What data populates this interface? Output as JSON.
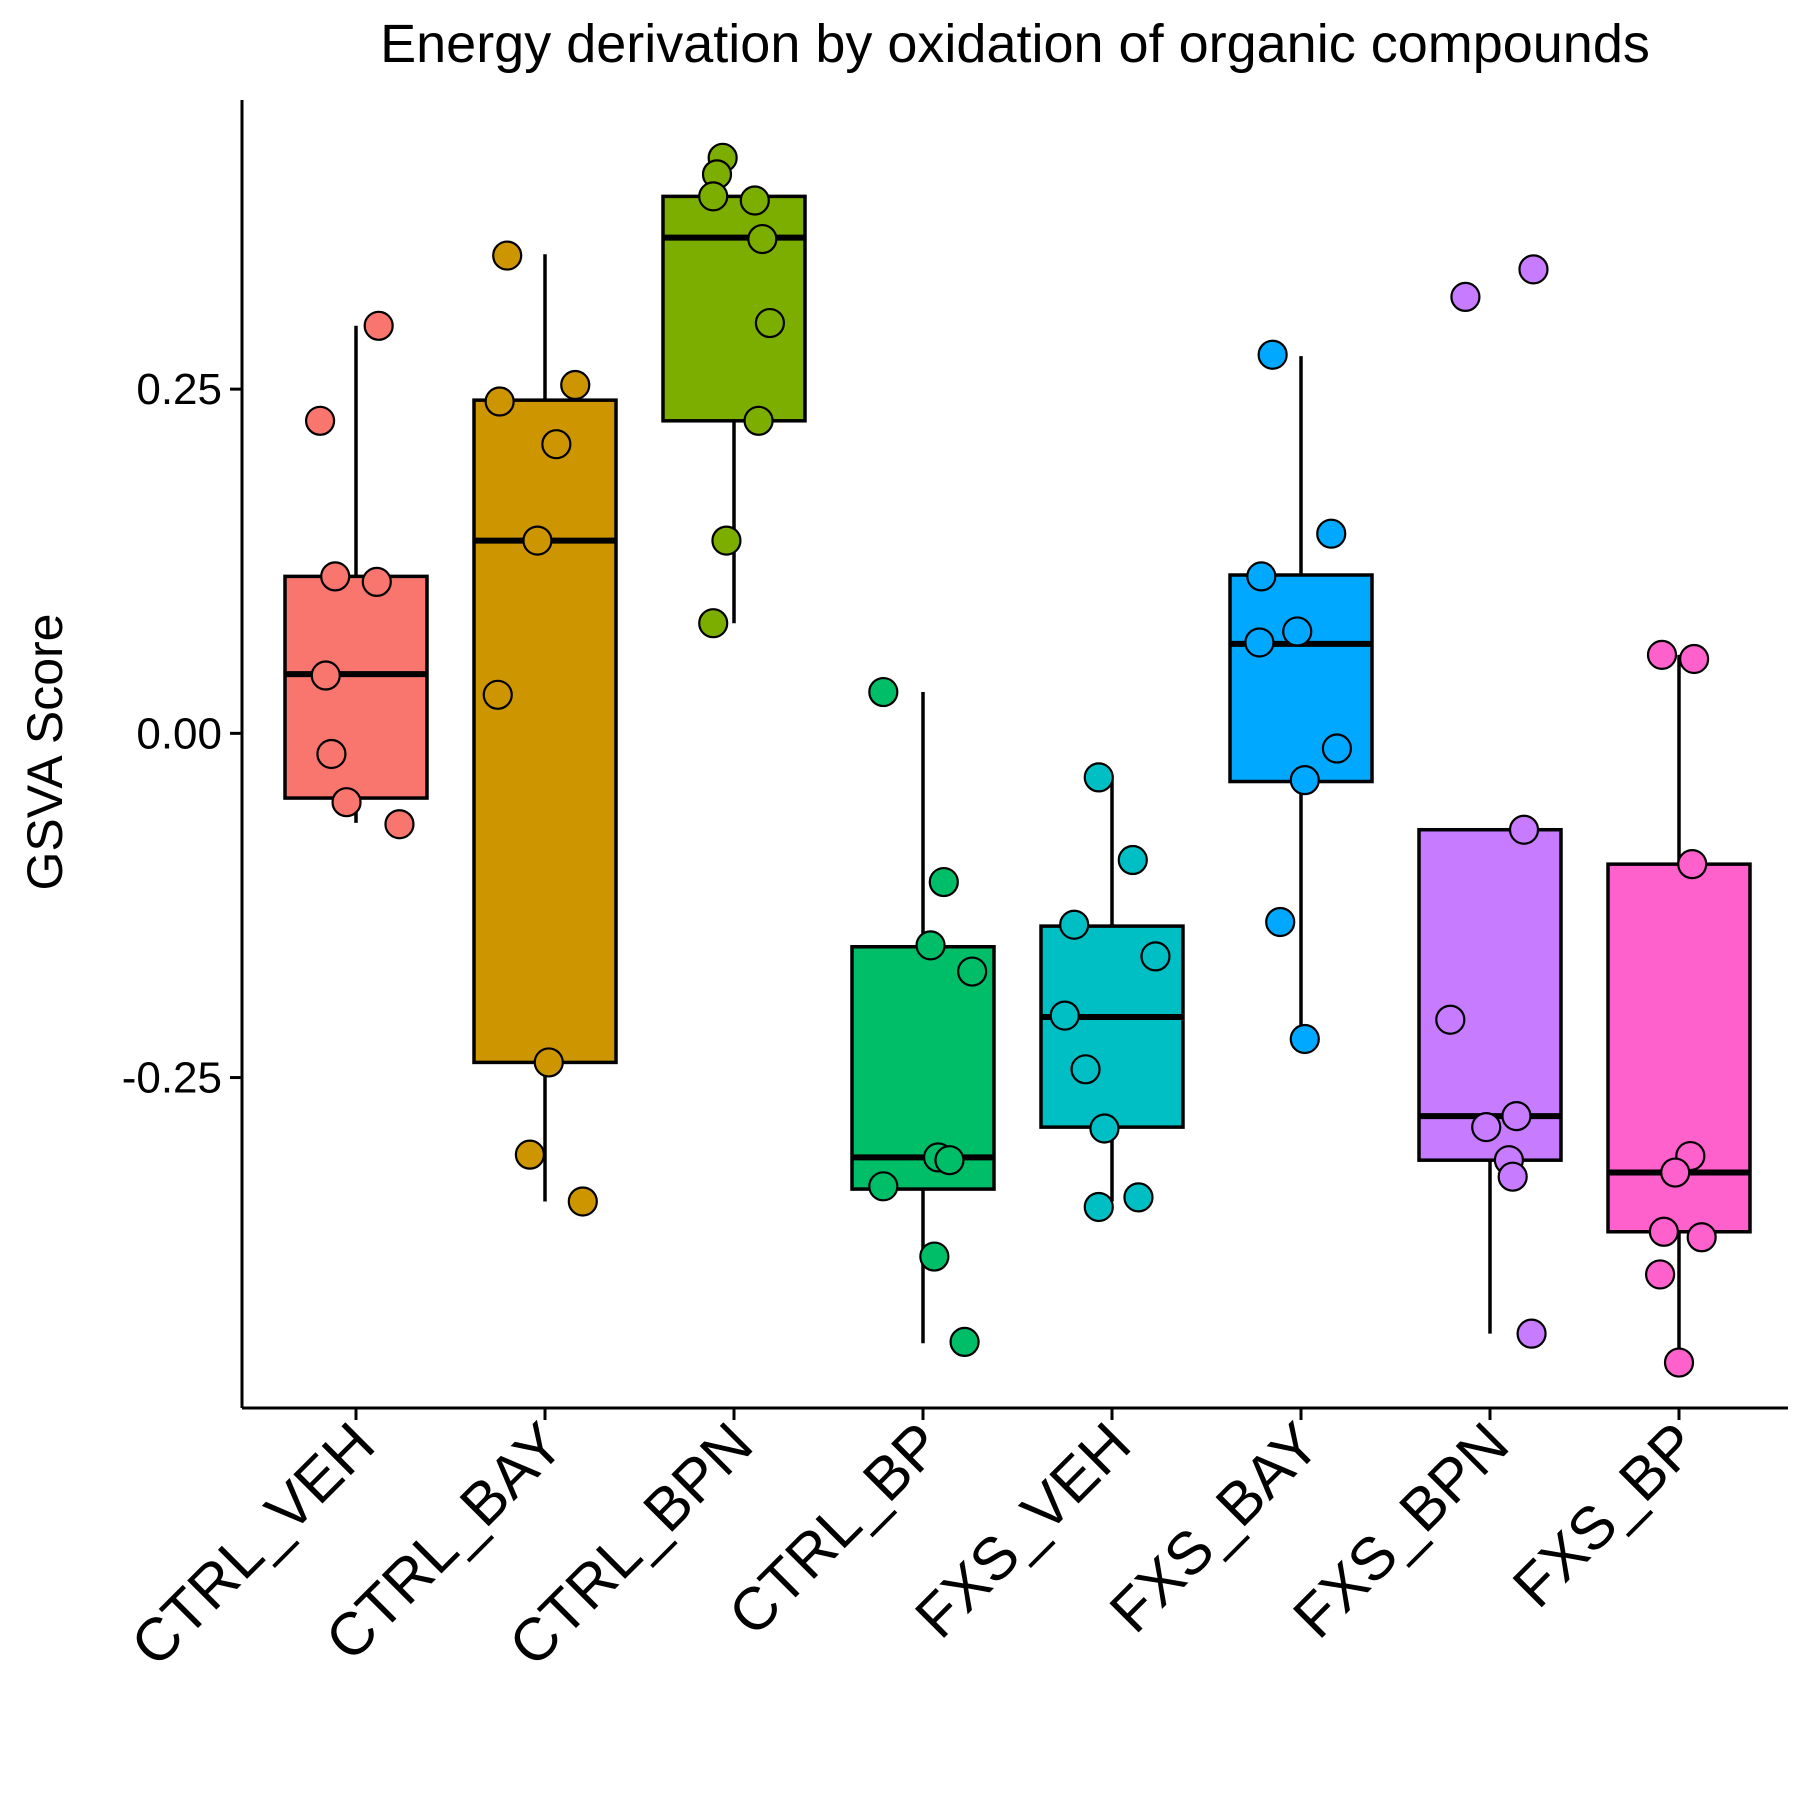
{
  "chart_data": {
    "type": "box",
    "title": "Energy derivation by oxidation of organic compounds",
    "xlabel": "",
    "ylabel": "GSVA Score",
    "ylim": [
      -0.49,
      0.46
    ],
    "yticks": [
      -0.25,
      0.0,
      0.25
    ],
    "ytick_labels": [
      "-0.25",
      "0.00",
      "0.25"
    ],
    "grid": false,
    "legend": "none",
    "categories": [
      "CTRL_VEH",
      "CTRL_BAY",
      "CTRL_BPN",
      "CTRL_BP",
      "FXS_VEH",
      "FXS_BAY",
      "FXS_BPN",
      "FXS_BP"
    ],
    "colors": [
      "#F8766D",
      "#CD9600",
      "#7CAE00",
      "#00BE67",
      "#00BFC4",
      "#00A9FF",
      "#C77CFF",
      "#FF61CC"
    ],
    "boxes": [
      {
        "group": "CTRL_VEH",
        "whisker_low": -0.065,
        "q1": -0.047,
        "median": 0.043,
        "q3": 0.114,
        "whisker_high": 0.296
      },
      {
        "group": "CTRL_BAY",
        "whisker_low": -0.34,
        "q1": -0.239,
        "median": 0.14,
        "q3": 0.242,
        "whisker_high": 0.348
      },
      {
        "group": "CTRL_BPN",
        "whisker_low": 0.08,
        "q1": 0.227,
        "median": 0.36,
        "q3": 0.39,
        "whisker_high": 0.39
      },
      {
        "group": "CTRL_BP",
        "whisker_low": -0.443,
        "q1": -0.331,
        "median": -0.308,
        "q3": -0.155,
        "whisker_high": 0.03
      },
      {
        "group": "FXS_VEH",
        "whisker_low": -0.34,
        "q1": -0.286,
        "median": -0.206,
        "q3": -0.14,
        "whisker_high": -0.032
      },
      {
        "group": "FXS_BAY",
        "whisker_low": -0.222,
        "q1": -0.035,
        "median": 0.065,
        "q3": 0.115,
        "whisker_high": 0.274
      },
      {
        "group": "FXS_BPN",
        "whisker_low": -0.436,
        "q1": -0.31,
        "median": -0.278,
        "q3": -0.07,
        "whisker_high": -0.07
      },
      {
        "group": "FXS_BP",
        "whisker_low": -0.457,
        "q1": -0.362,
        "median": -0.319,
        "q3": -0.095,
        "whisker_high": 0.057
      }
    ],
    "points": [
      {
        "group": "CTRL_VEH",
        "jitter": [
          0.12,
          -0.19,
          -0.11,
          0.11,
          -0.16,
          -0.13,
          -0.05,
          0.23
        ],
        "values": [
          0.296,
          0.227,
          0.114,
          0.11,
          0.042,
          -0.015,
          -0.05,
          -0.066
        ]
      },
      {
        "group": "CTRL_BAY",
        "jitter": [
          -0.2,
          0.16,
          -0.24,
          0.06,
          -0.04,
          -0.25,
          0.02,
          -0.08,
          0.2
        ],
        "values": [
          0.347,
          0.253,
          0.241,
          0.21,
          0.14,
          0.028,
          -0.239,
          -0.306,
          -0.34
        ]
      },
      {
        "group": "CTRL_BPN",
        "jitter": [
          -0.06,
          -0.09,
          -0.11,
          0.11,
          0.15,
          0.19,
          0.13,
          -0.04,
          -0.11
        ],
        "values": [
          0.418,
          0.406,
          0.39,
          0.387,
          0.359,
          0.298,
          0.227,
          0.14,
          0.08
        ]
      },
      {
        "group": "CTRL_BP",
        "jitter": [
          -0.21,
          0.11,
          0.04,
          0.26,
          0.08,
          0.14,
          -0.21,
          0.06,
          0.22
        ],
        "values": [
          0.03,
          -0.108,
          -0.154,
          -0.173,
          -0.308,
          -0.31,
          -0.329,
          -0.38,
          -0.442
        ]
      },
      {
        "group": "FXS_VEH",
        "jitter": [
          -0.07,
          0.11,
          -0.2,
          0.23,
          -0.25,
          -0.14,
          -0.04,
          0.14,
          -0.07
        ],
        "values": [
          -0.032,
          -0.092,
          -0.139,
          -0.162,
          -0.205,
          -0.244,
          -0.287,
          -0.337,
          -0.344
        ]
      },
      {
        "group": "FXS_BAY",
        "jitter": [
          -0.15,
          0.16,
          -0.21,
          -0.22,
          -0.02,
          0.19,
          0.02,
          -0.11,
          0.02
        ],
        "values": [
          0.275,
          0.145,
          0.114,
          0.066,
          0.074,
          -0.011,
          -0.034,
          -0.137,
          -0.222
        ]
      },
      {
        "group": "FXS_BPN",
        "jitter": [
          -0.13,
          0.23,
          0.18,
          -0.21,
          0.14,
          -0.02,
          0.1,
          0.12,
          0.22
        ],
        "values": [
          0.317,
          0.337,
          -0.07,
          -0.208,
          -0.278,
          -0.286,
          -0.31,
          -0.322,
          -0.436
        ]
      },
      {
        "group": "FXS_BP",
        "jitter": [
          -0.09,
          0.08,
          0.07,
          0.06,
          -0.02,
          -0.08,
          0.12,
          -0.1,
          -0.0
        ],
        "values": [
          0.057,
          0.054,
          -0.095,
          -0.307,
          -0.319,
          -0.362,
          -0.366,
          -0.393,
          -0.457
        ]
      }
    ]
  }
}
